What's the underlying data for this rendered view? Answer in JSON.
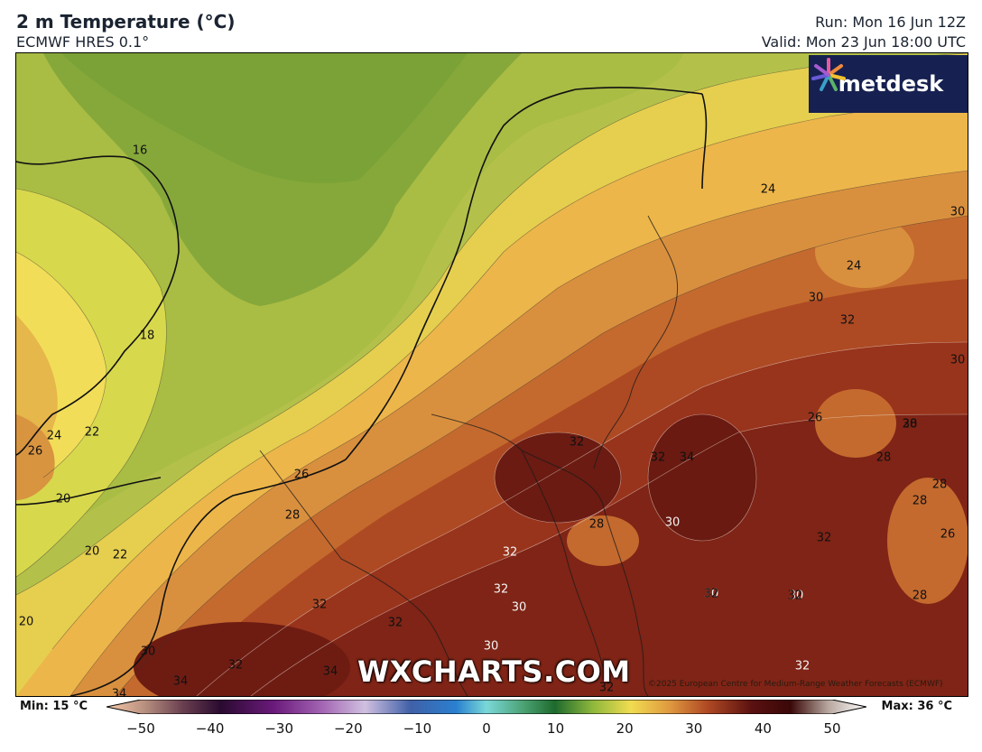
{
  "header": {
    "title": "2 m Temperature (°C)",
    "model": "ECMWF HRES 0.1°",
    "run": "Run: Mon 16 Jun 12Z",
    "valid": "Valid: Mon 23 Jun 18:00 UTC"
  },
  "logo": {
    "text": "metdesk",
    "icon": "metdesk-star-icon"
  },
  "watermark": "WXCHARTS.COM",
  "copyright": "©2025 European Centre for Medium-Range Weather Forecasts (ECMWF)",
  "contour_labels": [
    {
      "text": "16",
      "light": false
    },
    {
      "text": "18",
      "light": false
    },
    {
      "text": "22",
      "light": false
    },
    {
      "text": "24",
      "light": false
    },
    {
      "text": "26",
      "light": false
    },
    {
      "text": "20",
      "light": false
    },
    {
      "text": "20",
      "light": false
    },
    {
      "text": "22",
      "light": false
    },
    {
      "text": "20",
      "light": false
    },
    {
      "text": "30",
      "light": false
    },
    {
      "text": "34",
      "light": false
    },
    {
      "text": "32",
      "light": false
    },
    {
      "text": "34",
      "light": false
    },
    {
      "text": "34",
      "light": false
    },
    {
      "text": "32",
      "light": false
    },
    {
      "text": "32",
      "light": false
    },
    {
      "text": "26",
      "light": false
    },
    {
      "text": "28",
      "light": false
    },
    {
      "text": "32",
      "light": false
    },
    {
      "text": "32",
      "light": true
    },
    {
      "text": "30",
      "light": true
    },
    {
      "text": "32",
      "light": true
    },
    {
      "text": "30",
      "light": true
    },
    {
      "text": "28",
      "light": false
    },
    {
      "text": "32",
      "light": false
    },
    {
      "text": "34",
      "light": false
    },
    {
      "text": "30",
      "light": true
    },
    {
      "text": "32",
      "light": false
    },
    {
      "text": "32",
      "light": true
    },
    {
      "text": "30",
      "light": true
    },
    {
      "text": "30",
      "light": true
    },
    {
      "text": "32",
      "light": false
    },
    {
      "text": "24",
      "light": false
    },
    {
      "text": "30",
      "light": false
    },
    {
      "text": "24",
      "light": false
    },
    {
      "text": "30",
      "light": false
    },
    {
      "text": "32",
      "light": false
    },
    {
      "text": "30",
      "light": false
    },
    {
      "text": "28",
      "light": false
    },
    {
      "text": "26",
      "light": false
    },
    {
      "text": "30",
      "light": false
    },
    {
      "text": "28",
      "light": false
    },
    {
      "text": "28",
      "light": false
    },
    {
      "text": "28",
      "light": false
    },
    {
      "text": "26",
      "light": false
    },
    {
      "text": "28",
      "light": false
    },
    {
      "text": "32",
      "light": false
    },
    {
      "text": "32",
      "light": false
    }
  ],
  "legend": {
    "min_label": "Min: 15 °C",
    "max_label": "Max: 36 °C",
    "ticks": [
      "−50",
      "−40",
      "−30",
      "−20",
      "−10",
      "0",
      "10",
      "20",
      "30",
      "40",
      "50"
    ]
  }
}
